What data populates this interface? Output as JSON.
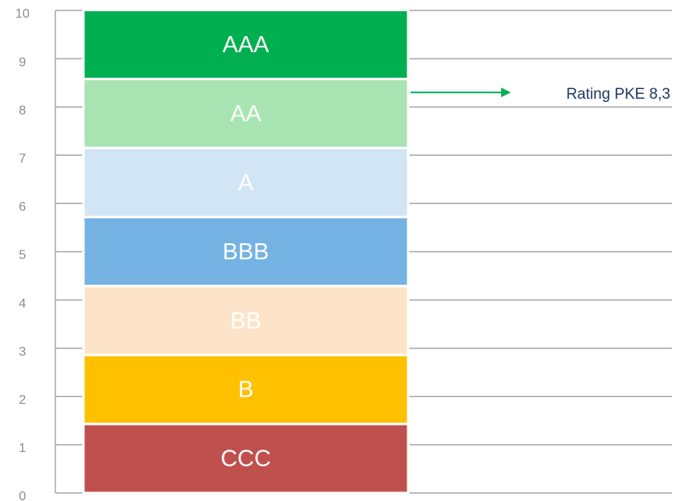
{
  "chart_data": {
    "type": "bar",
    "stacked": true,
    "categories": [
      null
    ],
    "series": [
      {
        "name": "CCC",
        "color": "#c0504d",
        "values": [
          1.43
        ]
      },
      {
        "name": "B",
        "color": "#ffc000",
        "values": [
          1.43
        ]
      },
      {
        "name": "BB",
        "color": "#fde4c8",
        "values": [
          1.43
        ]
      },
      {
        "name": "BBB",
        "color": "#74b3e3",
        "values": [
          1.43
        ]
      },
      {
        "name": "A",
        "color": "#d2e5f5",
        "values": [
          1.43
        ]
      },
      {
        "name": "AA",
        "color": "#a8e4b2",
        "values": [
          1.43
        ]
      },
      {
        "name": "AAA",
        "color": "#00b050",
        "values": [
          1.43
        ]
      }
    ],
    "ylim": [
      0,
      10
    ],
    "yticks": [
      0,
      1,
      2,
      3,
      4,
      5,
      6,
      7,
      8,
      9,
      10
    ],
    "grid": true,
    "annotation": {
      "text": "Rating PKE 8,3",
      "value": 8.3,
      "color": "#00b050"
    }
  }
}
